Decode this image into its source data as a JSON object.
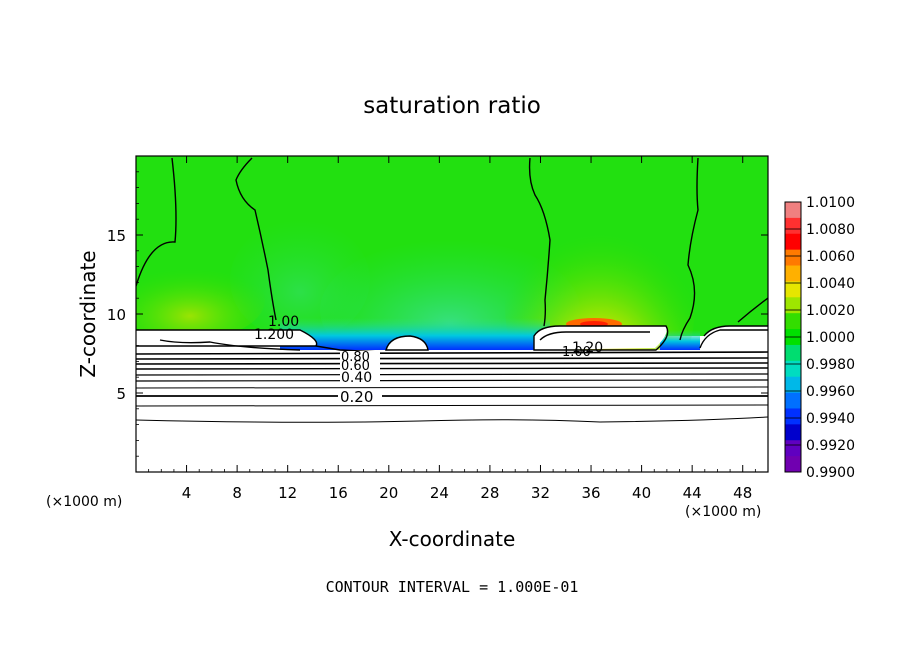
{
  "chart_data": {
    "type": "heatmap",
    "title": "saturation ratio",
    "xlabel": "X-coordinate",
    "ylabel": "Z-coordinate",
    "x_unit_left": "(×1000 m)",
    "x_unit_right": "(×1000 m)",
    "xlim": [
      0,
      50
    ],
    "ylim": [
      0,
      20
    ],
    "x_ticks": [
      4,
      8,
      12,
      16,
      20,
      24,
      28,
      32,
      36,
      40,
      44,
      48
    ],
    "x_tick_labels": [
      "4",
      "8",
      "12",
      "16",
      "20",
      "24",
      "28",
      "32",
      "36",
      "40",
      "44",
      "48"
    ],
    "y_ticks": [
      5,
      10,
      15
    ],
    "y_tick_labels": [
      "5",
      "10",
      "15"
    ],
    "colorbar": {
      "range": [
        0.99,
        1.01
      ],
      "labels": [
        "1.0100",
        "1.0080",
        "1.0060",
        "1.0040",
        "1.0020",
        "1.0000",
        "0.9980",
        "0.9960",
        "0.9940",
        "0.9920",
        "0.9900"
      ],
      "colors": [
        "#f08080",
        "#ff3030",
        "#ff0000",
        "#ff7a00",
        "#ffb000",
        "#e6e600",
        "#9ee600",
        "#33dd00",
        "#00e000",
        "#00dd70",
        "#00dcc0",
        "#00b8e8",
        "#0070ff",
        "#0030ff",
        "#0000cc",
        "#6000c0",
        "#7000b0"
      ]
    },
    "contour_labels": [
      "1.00",
      "1.200",
      "0.80",
      "0.60",
      "0.40",
      "0.20",
      "1.20",
      "1.00"
    ],
    "contour_levels": [
      0.1,
      0.2,
      0.3,
      0.4,
      0.5,
      0.6,
      0.7,
      0.8,
      0.9,
      1.0,
      1.1,
      1.2
    ],
    "footer": "CONTOUR INTERVAL = 1.000E-01"
  }
}
